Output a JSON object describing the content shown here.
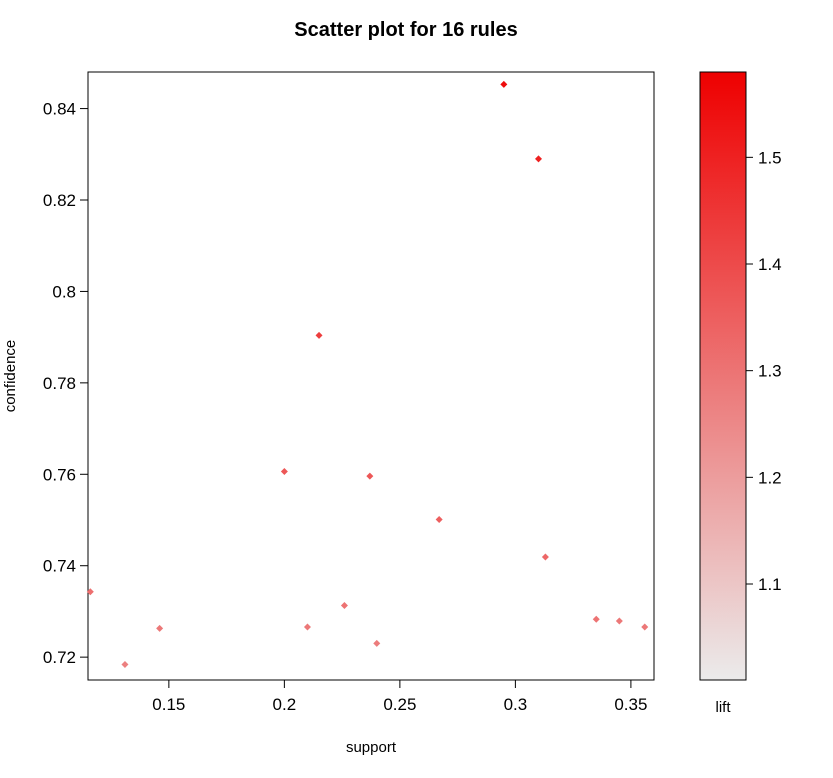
{
  "chart_data": {
    "type": "scatter",
    "title": "Scatter plot for 16 rules",
    "xlabel": "support",
    "ylabel": "confidence",
    "xlim": [
      0.115,
      0.36
    ],
    "ylim": [
      0.715,
      0.848
    ],
    "x_ticks": [
      0.15,
      0.2,
      0.25,
      0.3,
      0.35
    ],
    "x_tick_labels": [
      "0.15",
      "0.2",
      "0.25",
      "0.3",
      "0.35"
    ],
    "y_ticks": [
      0.72,
      0.74,
      0.76,
      0.78,
      0.8,
      0.82,
      0.84
    ],
    "y_tick_labels": [
      "0.72",
      "0.74",
      "0.76",
      "0.78",
      "0.8",
      "0.82",
      "0.84"
    ],
    "color_legend": {
      "label": "lift",
      "range": [
        1.01,
        1.58
      ],
      "ticks": [
        1.1,
        1.2,
        1.3,
        1.4,
        1.5
      ],
      "tick_labels": [
        "1.1",
        "1.2",
        "1.3",
        "1.4",
        "1.5"
      ],
      "low_color": "#ebebeb",
      "high_color": "#ee0000"
    },
    "points": [
      {
        "support": 0.295,
        "confidence": 0.8453,
        "lift": 1.55
      },
      {
        "support": 0.31,
        "confidence": 0.829,
        "lift": 1.5
      },
      {
        "support": 0.215,
        "confidence": 0.7904,
        "lift": 1.43
      },
      {
        "support": 0.2,
        "confidence": 0.7606,
        "lift": 1.37
      },
      {
        "support": 0.237,
        "confidence": 0.7596,
        "lift": 1.37
      },
      {
        "support": 0.267,
        "confidence": 0.7501,
        "lift": 1.35
      },
      {
        "support": 0.313,
        "confidence": 0.7419,
        "lift": 1.33
      },
      {
        "support": 0.116,
        "confidence": 0.7343,
        "lift": 1.31
      },
      {
        "support": 0.226,
        "confidence": 0.7313,
        "lift": 1.3
      },
      {
        "support": 0.335,
        "confidence": 0.7283,
        "lift": 1.3
      },
      {
        "support": 0.345,
        "confidence": 0.7279,
        "lift": 1.29
      },
      {
        "support": 0.356,
        "confidence": 0.7266,
        "lift": 1.29
      },
      {
        "support": 0.146,
        "confidence": 0.7263,
        "lift": 1.29
      },
      {
        "support": 0.21,
        "confidence": 0.7266,
        "lift": 1.29
      },
      {
        "support": 0.24,
        "confidence": 0.723,
        "lift": 1.28
      },
      {
        "support": 0.131,
        "confidence": 0.7184,
        "lift": 1.27
      }
    ]
  }
}
